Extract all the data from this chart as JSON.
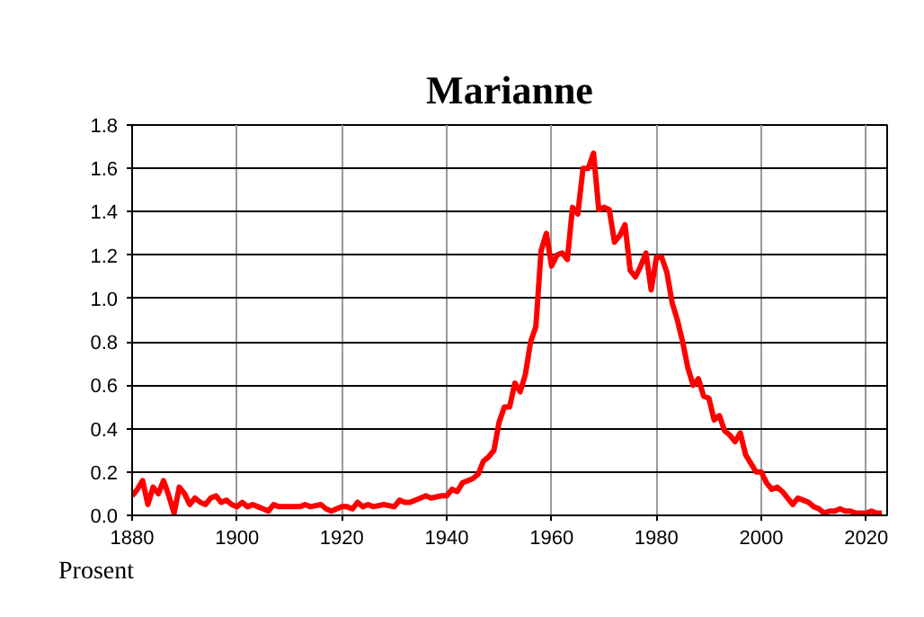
{
  "chart_data": {
    "type": "line",
    "title": "Marianne",
    "ylabel": "Prosent",
    "x": [
      1880,
      1881,
      1882,
      1883,
      1884,
      1885,
      1886,
      1887,
      1888,
      1889,
      1890,
      1891,
      1892,
      1893,
      1894,
      1895,
      1896,
      1897,
      1898,
      1899,
      1900,
      1901,
      1902,
      1903,
      1904,
      1905,
      1906,
      1907,
      1908,
      1909,
      1910,
      1912,
      1913,
      1914,
      1916,
      1917,
      1918,
      1919,
      1920,
      1921,
      1922,
      1923,
      1924,
      1925,
      1926,
      1928,
      1930,
      1931,
      1932,
      1933,
      1935,
      1936,
      1937,
      1939,
      1940,
      1941,
      1942,
      1943,
      1944,
      1945,
      1946,
      1947,
      1948,
      1949,
      1950,
      1951,
      1952,
      1953,
      1954,
      1955,
      1956,
      1957,
      1958,
      1959,
      1960,
      1961,
      1962,
      1963,
      1964,
      1965,
      1966,
      1967,
      1968,
      1969,
      1970,
      1971,
      1972,
      1973,
      1974,
      1975,
      1976,
      1977,
      1978,
      1979,
      1980,
      1981,
      1982,
      1983,
      1984,
      1985,
      1986,
      1987,
      1988,
      1989,
      1990,
      1991,
      1992,
      1993,
      1994,
      1995,
      1996,
      1997,
      1998,
      1999,
      2000,
      2001,
      2002,
      2003,
      2004,
      2005,
      2006,
      2007,
      2008,
      2009,
      2010,
      2011,
      2012,
      2013,
      2014,
      2015,
      2016,
      2017,
      2018,
      2019,
      2020,
      2021,
      2022,
      2023
    ],
    "series": [
      {
        "color": "#ff0000",
        "values": [
          0.09,
          0.12,
          0.16,
          0.05,
          0.13,
          0.1,
          0.16,
          0.09,
          0.01,
          0.13,
          0.1,
          0.05,
          0.08,
          0.06,
          0.05,
          0.08,
          0.09,
          0.06,
          0.07,
          0.05,
          0.04,
          0.06,
          0.04,
          0.05,
          0.04,
          0.03,
          0.02,
          0.05,
          0.04,
          0.04,
          0.04,
          0.04,
          0.05,
          0.04,
          0.05,
          0.03,
          0.02,
          0.03,
          0.04,
          0.04,
          0.03,
          0.06,
          0.04,
          0.05,
          0.04,
          0.05,
          0.04,
          0.07,
          0.06,
          0.06,
          0.08,
          0.09,
          0.08,
          0.09,
          0.09,
          0.12,
          0.11,
          0.15,
          0.16,
          0.17,
          0.19,
          0.25,
          0.27,
          0.3,
          0.43,
          0.5,
          0.5,
          0.61,
          0.57,
          0.65,
          0.8,
          0.87,
          1.22,
          1.3,
          1.15,
          1.2,
          1.21,
          1.18,
          1.42,
          1.39,
          1.6,
          1.6,
          1.67,
          1.41,
          1.42,
          1.41,
          1.26,
          1.29,
          1.34,
          1.13,
          1.1,
          1.15,
          1.21,
          1.04,
          1.19,
          1.19,
          1.12,
          0.98,
          0.9,
          0.8,
          0.68,
          0.6,
          0.63,
          0.55,
          0.54,
          0.44,
          0.46,
          0.39,
          0.37,
          0.34,
          0.38,
          0.28,
          0.24,
          0.2,
          0.2,
          0.15,
          0.12,
          0.13,
          0.11,
          0.08,
          0.05,
          0.08,
          0.07,
          0.06,
          0.04,
          0.03,
          0.01,
          0.02,
          0.02,
          0.03,
          0.02,
          0.02,
          0.01,
          0.01,
          0.01,
          0.02,
          0.01,
          0.01
        ]
      }
    ],
    "xlim": [
      1880,
      2024
    ],
    "ylim": [
      0,
      1.8
    ],
    "xticks": [
      1880,
      1900,
      1920,
      1940,
      1960,
      1980,
      2000,
      2020
    ],
    "yticks": [
      {
        "value": 0,
        "label": "0.0"
      },
      {
        "value": 0.2,
        "label": "0.2"
      },
      {
        "value": 0.4,
        "label": "0.4"
      },
      {
        "value": 0.6,
        "label": "0.6"
      },
      {
        "value": 0.8,
        "label": "0.8"
      },
      {
        "value": 1.0,
        "label": "1.0"
      },
      {
        "value": 1.2,
        "label": "1.2"
      },
      {
        "value": 1.4,
        "label": "1.4"
      },
      {
        "value": 1.6,
        "label": "1.6"
      },
      {
        "value": 1.8,
        "label": "1.8"
      }
    ],
    "grid": true,
    "line_style": "solid"
  }
}
